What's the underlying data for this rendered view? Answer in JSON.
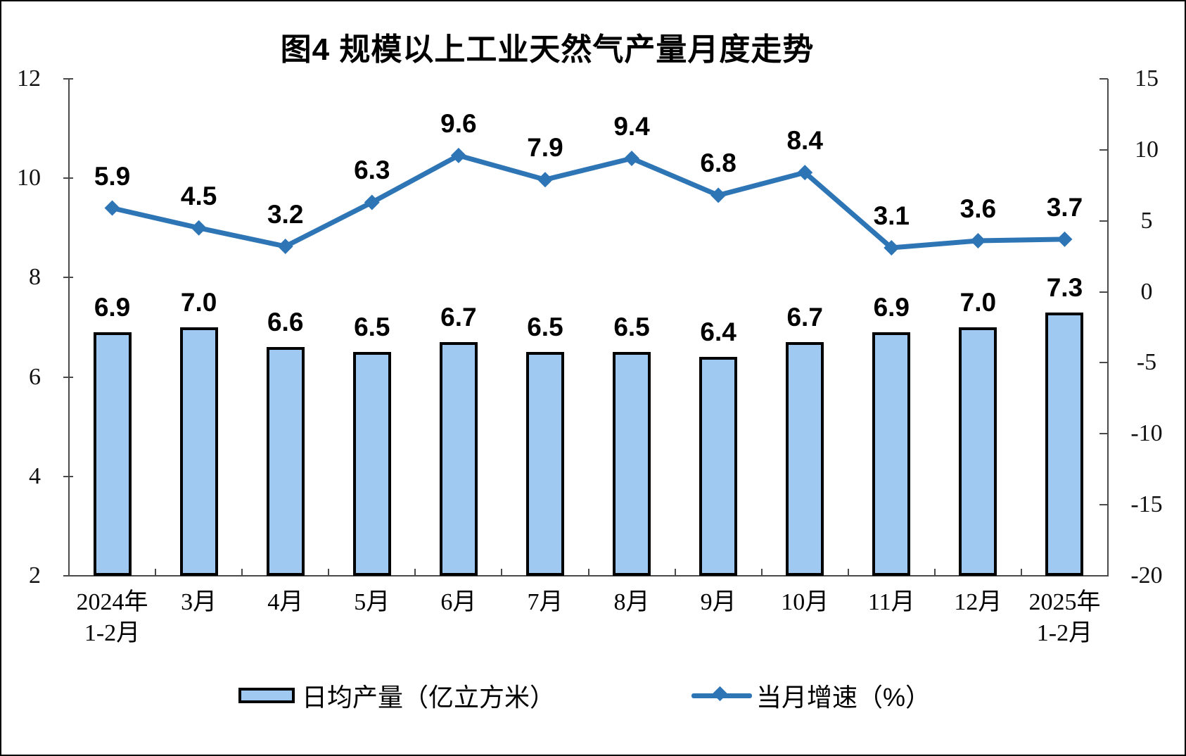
{
  "figure": {
    "title": "图4 规模以上工业天然气产量月度走势"
  },
  "chart_data": {
    "type": "combo",
    "title": "图4 规模以上工业天然气产量月度走势",
    "categories": [
      "2024年\n1-2月",
      "3月",
      "4月",
      "5月",
      "6月",
      "7月",
      "8月",
      "9月",
      "10月",
      "11月",
      "12月",
      "2025年\n1-2月"
    ],
    "series": [
      {
        "name": "日均产量（亿立方米）",
        "type": "bar",
        "axis": "left",
        "values": [
          6.9,
          7.0,
          6.6,
          6.5,
          6.7,
          6.5,
          6.5,
          6.4,
          6.7,
          6.9,
          7.0,
          7.3
        ],
        "color": "#A0C9F2",
        "border_color": "#000000"
      },
      {
        "name": "当月增速（%）",
        "type": "line",
        "axis": "right",
        "values": [
          5.9,
          4.5,
          3.2,
          6.3,
          9.6,
          7.9,
          9.4,
          6.8,
          8.4,
          3.1,
          3.6,
          3.7
        ],
        "color": "#2E75B6",
        "marker": "diamond"
      }
    ],
    "left_axis": {
      "min": 2,
      "max": 12,
      "ticks": [
        12,
        10,
        8,
        6,
        4,
        2
      ]
    },
    "right_axis": {
      "min": -20,
      "max": 15,
      "ticks": [
        15,
        10,
        5,
        0,
        -5,
        -10,
        -15,
        -20
      ]
    },
    "grid": false,
    "data_labels": true,
    "legend_position": "bottom"
  },
  "legend": {
    "items": [
      {
        "label": "日均产量（亿立方米）",
        "swatch": "bar"
      },
      {
        "label": "当月增速（%）",
        "swatch": "line-diamond"
      }
    ]
  }
}
